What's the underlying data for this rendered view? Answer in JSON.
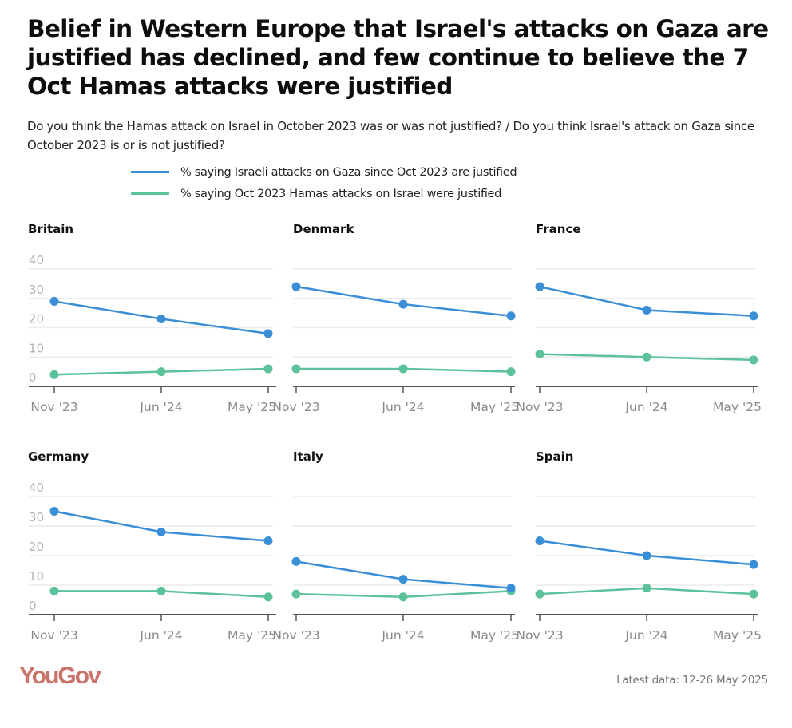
{
  "header": {
    "title": "Belief in Western Europe that Israel's attacks on Gaza are justified has declined, and few continue to believe the 7 Oct Hamas attacks were justified",
    "subtitle": "Do you think the Hamas attack on Israel in October 2023 was or was not justified? / Do you think Israel's attack on Gaza since October 2023 is or is not justified?"
  },
  "colors": {
    "israel_series": "#3b8fd6",
    "hamas_series": "#5cc29a",
    "gridline": "#ececec",
    "axis": "#555555",
    "brand": "#c9736b"
  },
  "footer": {
    "brand": "YouGov",
    "note": "Latest data: 12-26 May 2025"
  },
  "chart_data": {
    "type": "line",
    "title": "Belief in Western Europe that Israel's attacks on Gaza are justified has declined, and few continue to believe the 7 Oct Hamas attacks were justified",
    "subtitle": "Do you think the Hamas attack on Israel in October 2023 was or was not justified? / Do you think Israel's attack on Gaza since October 2023 is or is not justified?",
    "x": [
      "Nov '23",
      "Jun '24",
      "May '25"
    ],
    "ylim": [
      0,
      40
    ],
    "yticks": [
      0,
      10,
      20,
      30,
      40
    ],
    "grid": true,
    "legend_placement": "top",
    "legend": [
      "% saying Israeli attacks on Gaza since Oct 2023 are justified",
      "% saying Oct 2023 Hamas attacks on Israel were justified"
    ],
    "panels": [
      {
        "name": "Britain",
        "series": [
          {
            "name": "% saying Israeli attacks on Gaza since Oct 2023 are justified",
            "values": [
              29,
              23,
              18
            ]
          },
          {
            "name": "% saying Oct 2023 Hamas attacks on Israel were justified",
            "values": [
              4,
              5,
              6
            ]
          }
        ]
      },
      {
        "name": "Denmark",
        "series": [
          {
            "name": "% saying Israeli attacks on Gaza since Oct 2023 are justified",
            "values": [
              34,
              28,
              24
            ]
          },
          {
            "name": "% saying Oct 2023 Hamas attacks on Israel were justified",
            "values": [
              6,
              6,
              5
            ]
          }
        ]
      },
      {
        "name": "France",
        "series": [
          {
            "name": "% saying Israeli attacks on Gaza since Oct 2023 are justified",
            "values": [
              34,
              26,
              24
            ]
          },
          {
            "name": "% saying Oct 2023 Hamas attacks on Israel were justified",
            "values": [
              11,
              10,
              9
            ]
          }
        ]
      },
      {
        "name": "Germany",
        "series": [
          {
            "name": "% saying Israeli attacks on Gaza since Oct 2023 are justified",
            "values": [
              35,
              28,
              25
            ]
          },
          {
            "name": "% saying Oct 2023 Hamas attacks on Israel were justified",
            "values": [
              8,
              8,
              6
            ]
          }
        ]
      },
      {
        "name": "Italy",
        "series": [
          {
            "name": "% saying Israeli attacks on Gaza since Oct 2023 are justified",
            "values": [
              18,
              12,
              9
            ]
          },
          {
            "name": "% saying Oct 2023 Hamas attacks on Israel were justified",
            "values": [
              7,
              6,
              8
            ]
          }
        ]
      },
      {
        "name": "Spain",
        "series": [
          {
            "name": "% saying Israeli attacks on Gaza since Oct 2023 are justified",
            "values": [
              25,
              20,
              17
            ]
          },
          {
            "name": "% saying Oct 2023 Hamas attacks on Israel were justified",
            "values": [
              7,
              9,
              7
            ]
          }
        ]
      }
    ]
  }
}
